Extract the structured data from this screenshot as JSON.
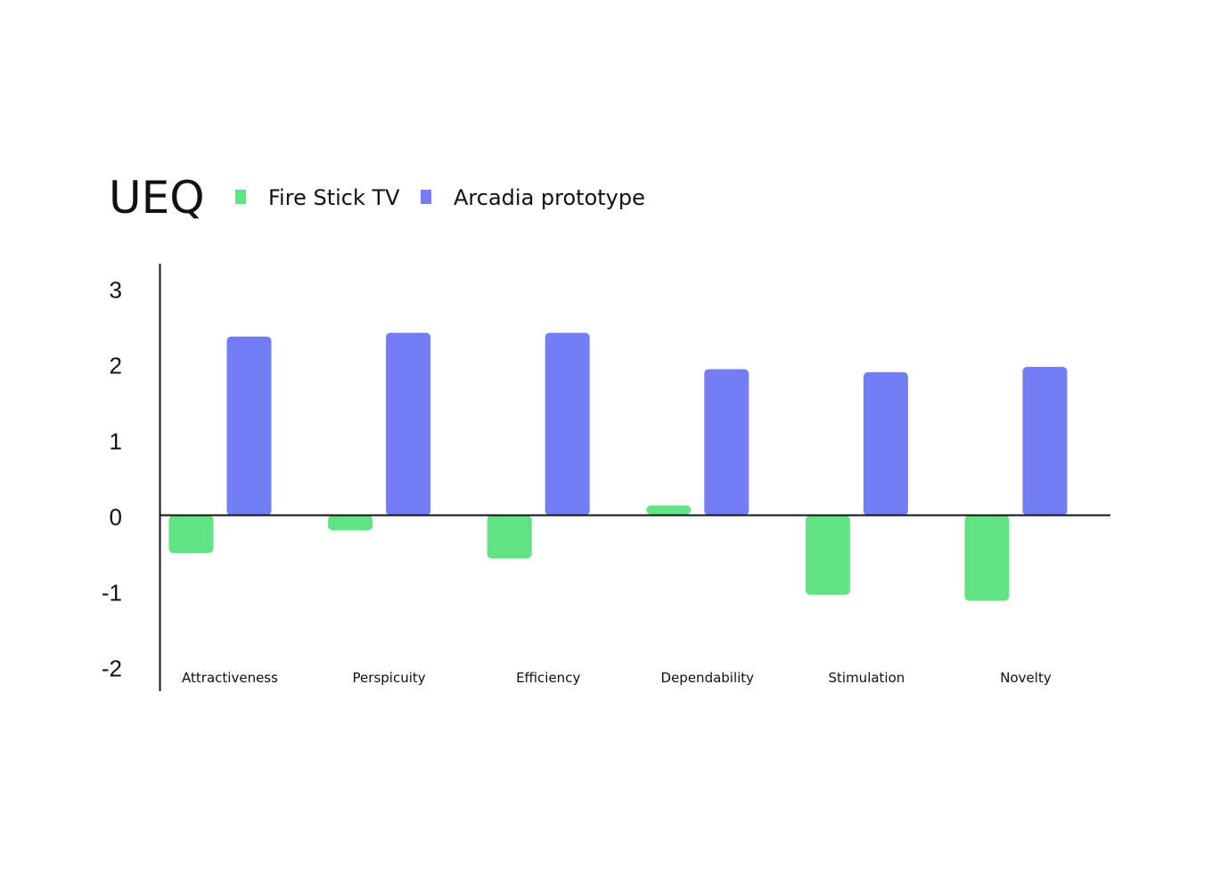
{
  "chart_data": {
    "type": "bar",
    "title": "UEQ",
    "categories": [
      "Attractiveness",
      "Perspicuity",
      "Efficiency",
      "Dependability",
      "Stimulation",
      "Novelty"
    ],
    "series": [
      {
        "name": "Fire Stick TV",
        "color": "#61e383",
        "values": [
          -0.5,
          -0.2,
          -0.57,
          0.07,
          -1.05,
          -1.13
        ]
      },
      {
        "name": "Arcadia prototype",
        "color": "#737cf5",
        "values": [
          2.36,
          2.41,
          2.41,
          1.93,
          1.89,
          1.96
        ]
      }
    ],
    "y_ticks": [
      "3",
      "2",
      "1",
      "0",
      "-1",
      "-2"
    ],
    "ylim": [
      -2.2,
      3.3
    ],
    "xlabel": "",
    "ylabel": "",
    "grid": false,
    "legend_position": "top, beside title"
  }
}
